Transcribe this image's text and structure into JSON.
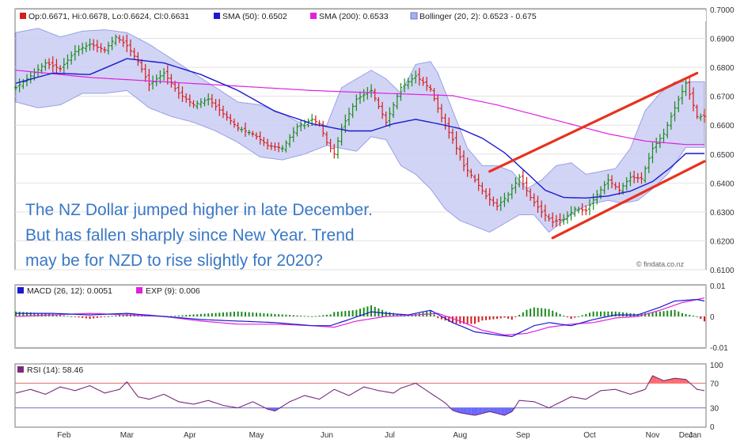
{
  "chart_data": [
    {
      "type": "ohlc",
      "legend": {
        "price": "Op:0.6671, Hi:0.6678, Lo:0.6624, Cl:0.6631",
        "sma50": "SMA (50): 0.6502",
        "sma200": "SMA (200): 0.6533",
        "bollinger": "Bollinger (20, 2): 0.6523 - 0.675"
      },
      "ylim": [
        0.61,
        0.7
      ],
      "yticks": [
        "0.6100",
        "0.6200",
        "0.6300",
        "0.6400",
        "0.6500",
        "0.6600",
        "0.6700",
        "0.6800",
        "0.6900",
        "0.7000"
      ],
      "annotation": [
        "The NZ Dollar jumped higher in late December.",
        "But has fallen sharply since New Year. Trend",
        "may be for NZD to rise slightly for 2020?"
      ],
      "credit": "© findata.co.nz",
      "colors": {
        "up": "#1a8a1a",
        "down": "#d81c1c",
        "sma50": "#1a1ad0",
        "sma200": "#e020e0",
        "band_fill": "#c9cdf2",
        "band_line": "#9aa0e8",
        "trend": "#e8321e"
      },
      "anchors": {
        "sma50": [
          [
            0,
            0.6745
          ],
          [
            10,
            0.678
          ],
          [
            20,
            0.6775
          ],
          [
            30,
            0.683
          ],
          [
            40,
            0.6815
          ],
          [
            50,
            0.6775
          ],
          [
            60,
            0.672
          ],
          [
            70,
            0.6648
          ],
          [
            80,
            0.6605
          ],
          [
            90,
            0.658
          ],
          [
            96,
            0.658
          ],
          [
            102,
            0.6605
          ],
          [
            108,
            0.662
          ],
          [
            114,
            0.6605
          ],
          [
            120,
            0.6588
          ],
          [
            126,
            0.6555
          ],
          [
            132,
            0.6505
          ],
          [
            138,
            0.6435
          ],
          [
            143,
            0.6375
          ],
          [
            148,
            0.635
          ],
          [
            154,
            0.6348
          ],
          [
            160,
            0.6355
          ],
          [
            166,
            0.6372
          ],
          [
            172,
            0.6405
          ],
          [
            177,
            0.6455
          ],
          [
            181,
            0.6502
          ]
        ],
        "sma200": [
          [
            0,
            0.679
          ],
          [
            20,
            0.6765
          ],
          [
            40,
            0.675
          ],
          [
            60,
            0.6735
          ],
          [
            80,
            0.672
          ],
          [
            100,
            0.671
          ],
          [
            118,
            0.6702
          ],
          [
            130,
            0.667
          ],
          [
            145,
            0.662
          ],
          [
            160,
            0.657
          ],
          [
            170,
            0.6545
          ],
          [
            181,
            0.6533
          ]
        ],
        "bb_upper": [
          [
            0,
            0.692
          ],
          [
            6,
            0.6935
          ],
          [
            12,
            0.6905
          ],
          [
            18,
            0.6925
          ],
          [
            24,
            0.693
          ],
          [
            30,
            0.692
          ],
          [
            36,
            0.688
          ],
          [
            42,
            0.683
          ],
          [
            48,
            0.678
          ],
          [
            54,
            0.673
          ],
          [
            60,
            0.668
          ],
          [
            66,
            0.667
          ],
          [
            72,
            0.664
          ],
          [
            78,
            0.66
          ],
          [
            84,
            0.66
          ],
          [
            88,
            0.673
          ],
          [
            92,
            0.676
          ],
          [
            96,
            0.679
          ],
          [
            100,
            0.676
          ],
          [
            104,
            0.671
          ],
          [
            108,
            0.681
          ],
          [
            112,
            0.682
          ],
          [
            114,
            0.678
          ],
          [
            118,
            0.665
          ],
          [
            122,
            0.652
          ],
          [
            126,
            0.646
          ],
          [
            130,
            0.646
          ],
          [
            134,
            0.644
          ],
          [
            138,
            0.638
          ],
          [
            142,
            0.641
          ],
          [
            146,
            0.646
          ],
          [
            150,
            0.647
          ],
          [
            154,
            0.643
          ],
          [
            158,
            0.644
          ],
          [
            162,
            0.645
          ],
          [
            166,
            0.652
          ],
          [
            170,
            0.665
          ],
          [
            174,
            0.671
          ],
          [
            178,
            0.675
          ],
          [
            181,
            0.675
          ]
        ],
        "bb_lower": [
          [
            0,
            0.668
          ],
          [
            6,
            0.666
          ],
          [
            12,
            0.667
          ],
          [
            18,
            0.671
          ],
          [
            24,
            0.671
          ],
          [
            30,
            0.672
          ],
          [
            36,
            0.666
          ],
          [
            42,
            0.663
          ],
          [
            48,
            0.661
          ],
          [
            54,
            0.658
          ],
          [
            60,
            0.654
          ],
          [
            66,
            0.649
          ],
          [
            72,
            0.648
          ],
          [
            78,
            0.65
          ],
          [
            84,
            0.653
          ],
          [
            88,
            0.652
          ],
          [
            92,
            0.651
          ],
          [
            96,
            0.656
          ],
          [
            100,
            0.655
          ],
          [
            104,
            0.646
          ],
          [
            108,
            0.643
          ],
          [
            112,
            0.638
          ],
          [
            116,
            0.631
          ],
          [
            120,
            0.627
          ],
          [
            124,
            0.625
          ],
          [
            128,
            0.623
          ],
          [
            132,
            0.626
          ],
          [
            136,
            0.629
          ],
          [
            140,
            0.629
          ],
          [
            144,
            0.623
          ],
          [
            148,
            0.627
          ],
          [
            152,
            0.631
          ],
          [
            156,
            0.633
          ],
          [
            160,
            0.634
          ],
          [
            164,
            0.633
          ],
          [
            168,
            0.634
          ],
          [
            172,
            0.638
          ],
          [
            176,
            0.643
          ],
          [
            181,
            0.6523
          ]
        ],
        "close": [
          [
            0,
            0.673
          ],
          [
            4,
            0.677
          ],
          [
            8,
            0.6815
          ],
          [
            12,
            0.6795
          ],
          [
            16,
            0.6855
          ],
          [
            20,
            0.688
          ],
          [
            24,
            0.686
          ],
          [
            27,
            0.6905
          ],
          [
            30,
            0.6875
          ],
          [
            33,
            0.682
          ],
          [
            36,
            0.674
          ],
          [
            40,
            0.678
          ],
          [
            44,
            0.671
          ],
          [
            48,
            0.667
          ],
          [
            52,
            0.669
          ],
          [
            56,
            0.664
          ],
          [
            60,
            0.659
          ],
          [
            64,
            0.657
          ],
          [
            68,
            0.653
          ],
          [
            72,
            0.652
          ],
          [
            76,
            0.6595
          ],
          [
            80,
            0.662
          ],
          [
            82,
            0.6605
          ],
          [
            84,
            0.654
          ],
          [
            86,
            0.65
          ],
          [
            88,
            0.659
          ],
          [
            92,
            0.669
          ],
          [
            96,
            0.672
          ],
          [
            100,
            0.661
          ],
          [
            104,
            0.673
          ],
          [
            108,
            0.677
          ],
          [
            112,
            0.6725
          ],
          [
            115,
            0.6625
          ],
          [
            118,
            0.655
          ],
          [
            121,
            0.646
          ],
          [
            124,
            0.641
          ],
          [
            127,
            0.6355
          ],
          [
            130,
            0.632
          ],
          [
            133,
            0.636
          ],
          [
            136,
            0.642
          ],
          [
            139,
            0.635
          ],
          [
            142,
            0.63
          ],
          [
            145,
            0.6265
          ],
          [
            148,
            0.6275
          ],
          [
            151,
            0.631
          ],
          [
            154,
            0.6305
          ],
          [
            157,
            0.636
          ],
          [
            160,
            0.641
          ],
          [
            163,
            0.6375
          ],
          [
            166,
            0.642
          ],
          [
            169,
            0.6415
          ],
          [
            172,
            0.652
          ],
          [
            175,
            0.657
          ],
          [
            178,
            0.666
          ],
          [
            181,
            0.6745
          ],
          [
            184,
            0.663
          ]
        ]
      },
      "trendlines": [
        [
          [
            0.6435,
            130
          ],
          [
            0.643,
            130
          ]
        ]
      ],
      "trend_upper": {
        "start": [
          128,
          0.644
        ],
        "end": [
          184,
          0.678
        ]
      },
      "trend_lower": {
        "start": [
          145,
          0.621
        ],
        "end": [
          186,
          0.6475
        ]
      }
    },
    {
      "type": "macd",
      "legend": {
        "macd": "MACD (26, 12): 0.0051",
        "exp": "EXP (9): 0.006"
      },
      "ylim": [
        -0.01,
        0.01
      ],
      "yticks": [
        "0.01",
        "0",
        "-0.01"
      ],
      "colors": {
        "macd": "#1a1ad0",
        "exp": "#e020e0",
        "pos": "#1a8a1a",
        "neg": "#d81c1c"
      },
      "anchors": {
        "macd": [
          [
            0,
            0.001
          ],
          [
            10,
            0.001
          ],
          [
            20,
            0.0005
          ],
          [
            30,
            0.001
          ],
          [
            40,
            0
          ],
          [
            50,
            -0.001
          ],
          [
            60,
            -0.0015
          ],
          [
            70,
            -0.002
          ],
          [
            80,
            -0.003
          ],
          [
            85,
            -0.003
          ],
          [
            90,
            -0.001
          ],
          [
            96,
            0.0015
          ],
          [
            100,
            0.001
          ],
          [
            106,
            0.0005
          ],
          [
            112,
            0.002
          ],
          [
            118,
            -0.002
          ],
          [
            124,
            -0.005
          ],
          [
            130,
            -0.006
          ],
          [
            134,
            -0.0065
          ],
          [
            140,
            -0.003
          ],
          [
            144,
            -0.002
          ],
          [
            150,
            -0.003
          ],
          [
            156,
            -0.001
          ],
          [
            162,
            0.0005
          ],
          [
            168,
            0.0005
          ],
          [
            174,
            0.003
          ],
          [
            178,
            0.005
          ],
          [
            184,
            0.0055
          ],
          [
            186,
            0.005
          ]
        ],
        "exp": [
          [
            0,
            0
          ],
          [
            10,
            0.0005
          ],
          [
            20,
            0.001
          ],
          [
            30,
            0.0005
          ],
          [
            40,
            0
          ],
          [
            50,
            -0.0015
          ],
          [
            60,
            -0.0025
          ],
          [
            70,
            -0.0025
          ],
          [
            80,
            -0.003
          ],
          [
            86,
            -0.0035
          ],
          [
            92,
            -0.0015
          ],
          [
            100,
            0
          ],
          [
            108,
            0.0005
          ],
          [
            114,
            0.001
          ],
          [
            120,
            -0.0015
          ],
          [
            126,
            -0.0045
          ],
          [
            132,
            -0.006
          ],
          [
            138,
            -0.0055
          ],
          [
            144,
            -0.0035
          ],
          [
            150,
            -0.0025
          ],
          [
            156,
            -0.002
          ],
          [
            162,
            -0.0005
          ],
          [
            168,
            0
          ],
          [
            174,
            0.002
          ],
          [
            180,
            0.0045
          ],
          [
            186,
            0.006
          ]
        ]
      }
    },
    {
      "type": "rsi",
      "legend": {
        "rsi": "RSI (14): 58.46"
      },
      "ylim": [
        0,
        100
      ],
      "yticks": [
        "100",
        "70",
        "30",
        "0"
      ],
      "levels": [
        70,
        30
      ],
      "colors": {
        "rsi": "#7a2a7a",
        "over": "#ff6a6a",
        "under": "#6a6aff",
        "ob_line": "#e07070",
        "os_line": "#7070c0"
      },
      "anchors": {
        "rsi": [
          [
            0,
            54
          ],
          [
            4,
            60
          ],
          [
            8,
            52
          ],
          [
            12,
            64
          ],
          [
            16,
            58
          ],
          [
            20,
            66
          ],
          [
            24,
            54
          ],
          [
            28,
            60
          ],
          [
            30,
            72
          ],
          [
            33,
            48
          ],
          [
            36,
            44
          ],
          [
            40,
            52
          ],
          [
            44,
            40
          ],
          [
            48,
            36
          ],
          [
            52,
            42
          ],
          [
            56,
            34
          ],
          [
            60,
            30
          ],
          [
            64,
            40
          ],
          [
            68,
            28
          ],
          [
            70,
            25
          ],
          [
            74,
            40
          ],
          [
            78,
            50
          ],
          [
            82,
            44
          ],
          [
            86,
            60
          ],
          [
            90,
            50
          ],
          [
            94,
            64
          ],
          [
            98,
            58
          ],
          [
            102,
            54
          ],
          [
            104,
            62
          ],
          [
            108,
            70
          ],
          [
            110,
            62
          ],
          [
            113,
            50
          ],
          [
            116,
            38
          ],
          [
            118,
            26
          ],
          [
            120,
            22
          ],
          [
            124,
            18
          ],
          [
            128,
            24
          ],
          [
            132,
            18
          ],
          [
            134,
            24
          ],
          [
            136,
            42
          ],
          [
            140,
            40
          ],
          [
            144,
            30
          ],
          [
            146,
            36
          ],
          [
            150,
            48
          ],
          [
            154,
            44
          ],
          [
            158,
            58
          ],
          [
            162,
            60
          ],
          [
            166,
            52
          ],
          [
            170,
            60
          ],
          [
            172,
            82
          ],
          [
            175,
            74
          ],
          [
            178,
            78
          ],
          [
            181,
            76
          ],
          [
            184,
            60
          ],
          [
            186,
            58
          ]
        ]
      }
    }
  ],
  "x_axis": {
    "months": [
      "Feb",
      "Mar",
      "Apr",
      "May",
      "Jun",
      "Jul",
      "Aug",
      "Sep",
      "Oct",
      "Nov",
      "Dec",
      "Jan"
    ]
  }
}
